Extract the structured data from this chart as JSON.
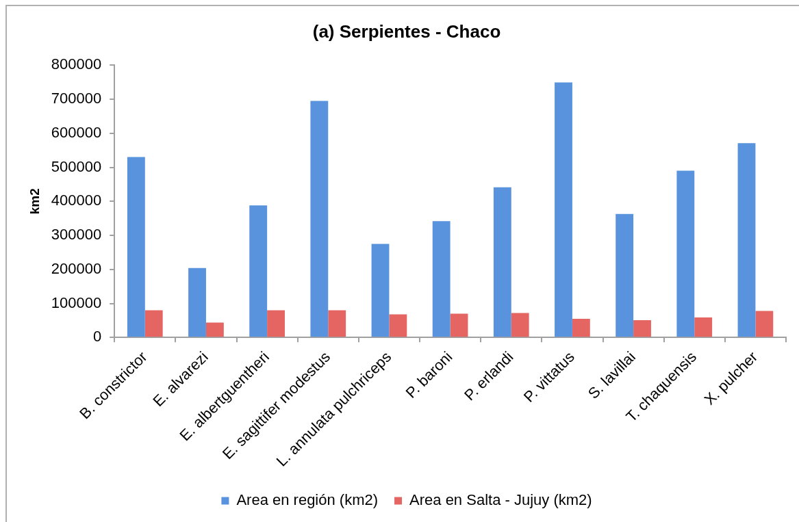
{
  "chart_data": {
    "type": "bar",
    "title": "(a) Serpientes - Chaco",
    "ylabel": "km2",
    "categories": [
      "B. constrictor",
      "E. alvarezi",
      "E. albertguentheri",
      "E. sagittifer modestus",
      "L. annulata pulchriceps",
      "P. baroni",
      "P. erlandi",
      "P. vittatus",
      "S. lavillai",
      "T. chaquensis",
      "X. pulcher"
    ],
    "series": [
      {
        "name": "Area en región (km2)",
        "color": "#5a93dd",
        "values": [
          530000,
          204000,
          388000,
          695000,
          275000,
          342000,
          441000,
          749000,
          363000,
          490000,
          571000
        ]
      },
      {
        "name": "Area en Salta - Jujuy (km2)",
        "color": "#e46561",
        "values": [
          80000,
          44000,
          80000,
          80000,
          68000,
          70000,
          72000,
          55000,
          51000,
          59000,
          78000
        ]
      }
    ],
    "ylim": [
      0,
      800000
    ],
    "yticks": [
      0,
      100000,
      200000,
      300000,
      400000,
      500000,
      600000,
      700000,
      800000
    ],
    "grid": false,
    "legend": "bottom"
  }
}
